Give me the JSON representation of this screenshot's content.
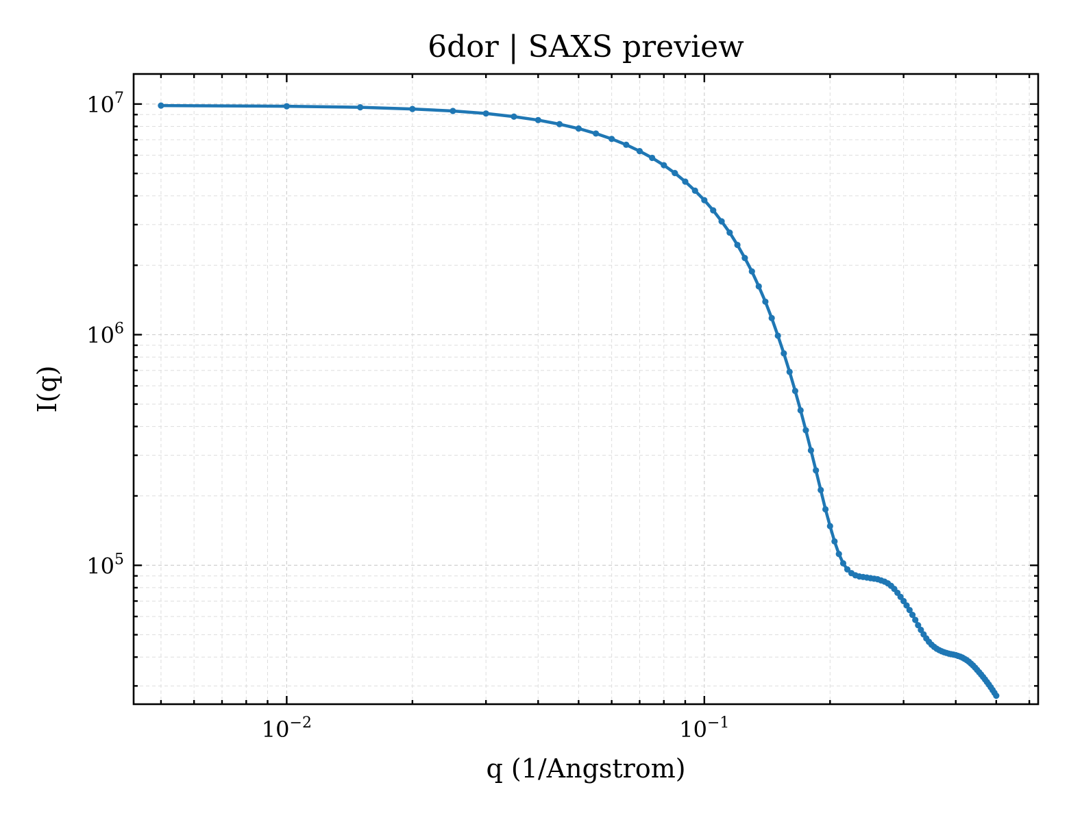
{
  "chart_data": {
    "type": "line",
    "title": "6dor | SAXS preview",
    "xlabel": "q (1/Angstrom)",
    "ylabel": "I(q)",
    "xscale": "log",
    "yscale": "log",
    "xlim": [
      0.0043,
      0.63
    ],
    "ylim": [
      25000,
      13500000
    ],
    "grid": true,
    "x_ticks": [
      {
        "value": 0.01,
        "base": "10",
        "exp": "−2"
      },
      {
        "value": 0.1,
        "base": "10",
        "exp": "−1"
      }
    ],
    "y_ticks": [
      {
        "value": 100000,
        "base": "10",
        "exp": "5"
      },
      {
        "value": 1000000,
        "base": "10",
        "exp": "6"
      },
      {
        "value": 10000000,
        "base": "10",
        "exp": "7"
      }
    ],
    "color": "#1f77b4",
    "series": [
      {
        "x": [
          0.005,
          0.01,
          0.015,
          0.02,
          0.025,
          0.03,
          0.035,
          0.04,
          0.045,
          0.05,
          0.055,
          0.06,
          0.065,
          0.07,
          0.075,
          0.08,
          0.085,
          0.09,
          0.095,
          0.1,
          0.105,
          0.11,
          0.115,
          0.12,
          0.125,
          0.13,
          0.135,
          0.14,
          0.145,
          0.15,
          0.155,
          0.16,
          0.165,
          0.17,
          0.175,
          0.18,
          0.185,
          0.19,
          0.195,
          0.2,
          0.205,
          0.21,
          0.215,
          0.22,
          0.225,
          0.23,
          0.235,
          0.24,
          0.245,
          0.25,
          0.255,
          0.26,
          0.265,
          0.27,
          0.275,
          0.28,
          0.285,
          0.29,
          0.295,
          0.3,
          0.305,
          0.31,
          0.315,
          0.32,
          0.325,
          0.33,
          0.335,
          0.34,
          0.345,
          0.35,
          0.355,
          0.36,
          0.365,
          0.37,
          0.375,
          0.38,
          0.385,
          0.39,
          0.395,
          0.4,
          0.405,
          0.41,
          0.415,
          0.42,
          0.425,
          0.43,
          0.435,
          0.44,
          0.445,
          0.45,
          0.455,
          0.46,
          0.465,
          0.47,
          0.475,
          0.48,
          0.485,
          0.49,
          0.495,
          0.5
        ],
        "y": [
          9850000,
          9780000,
          9680000,
          9520000,
          9330000,
          9100000,
          8820000,
          8520000,
          8180000,
          7830000,
          7450000,
          7060000,
          6660000,
          6250000,
          5840000,
          5430000,
          5020000,
          4610000,
          4210000,
          3830000,
          3460000,
          3100000,
          2770000,
          2450000,
          2150000,
          1880000,
          1620000,
          1390000,
          1180000,
          990000,
          830000,
          690000,
          570000,
          470000,
          385000,
          315000,
          258000,
          212000,
          175000,
          148000,
          127000,
          112000,
          102000,
          96000,
          92500,
          90500,
          89500,
          89000,
          88500,
          88000,
          87500,
          87000,
          86000,
          85000,
          83500,
          81500,
          79000,
          76000,
          73000,
          70000,
          67000,
          64000,
          61000,
          58000,
          55000,
          52500,
          50200,
          48200,
          46600,
          45300,
          44300,
          43500,
          42900,
          42400,
          42000,
          41700,
          41400,
          41200,
          41000,
          40800,
          40500,
          40200,
          39800,
          39300,
          38800,
          38200,
          37500,
          36800,
          36000,
          35200,
          34400,
          33600,
          32800,
          32000,
          31200,
          30400,
          29600,
          28800,
          28000,
          27200
        ]
      }
    ]
  }
}
